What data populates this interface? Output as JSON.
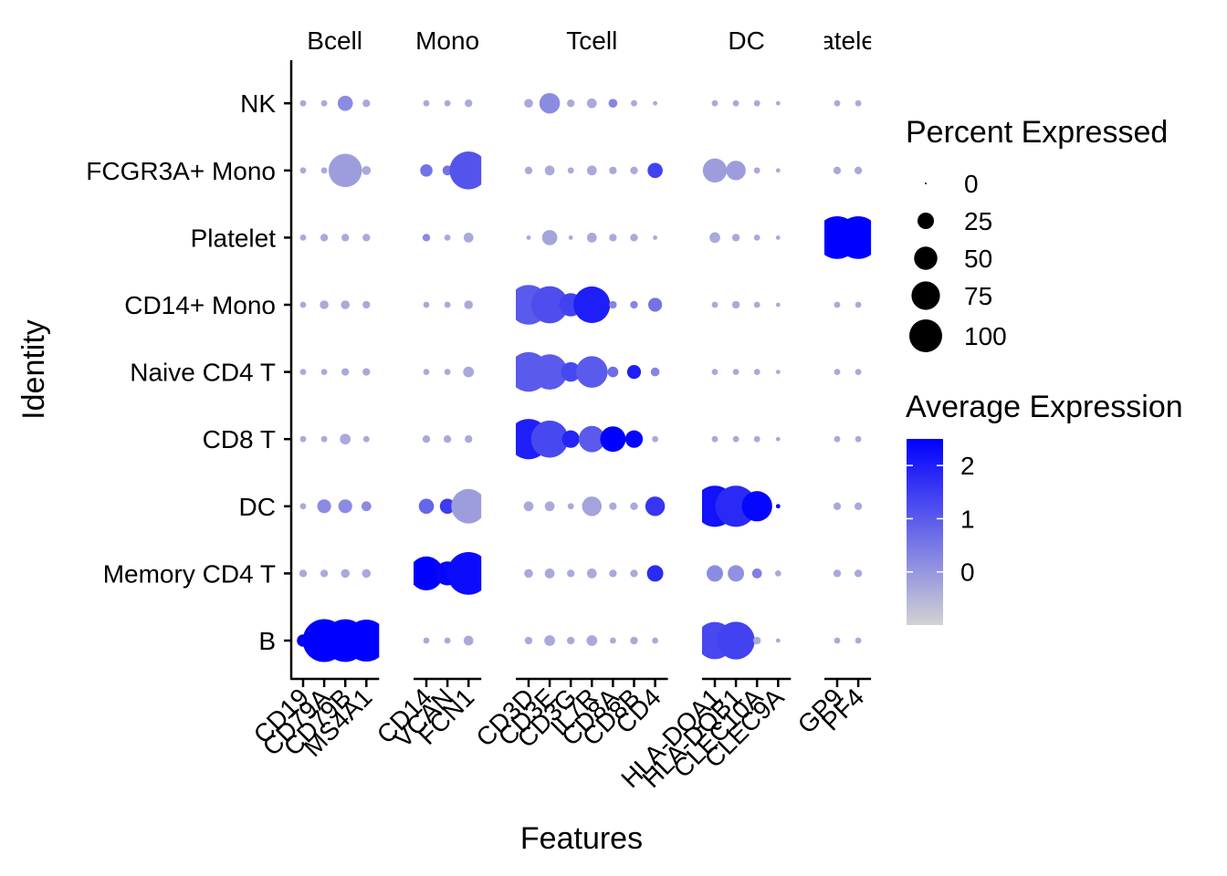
{
  "chart_data": {
    "type": "dotplot",
    "xlabel": "Features",
    "ylabel": "Identity",
    "identities": [
      "B",
      "Memory CD4 T",
      "DC",
      "CD8 T",
      "Naive CD4 T",
      "CD14+ Mono",
      "Platelet",
      "FCGR3A+ Mono",
      "NK"
    ],
    "groups": [
      {
        "label": "Bcell",
        "features": [
          "CD19",
          "CD79A",
          "CD79B",
          "MS4A1"
        ]
      },
      {
        "label": "Mono",
        "features": [
          "CD14",
          "VCAN",
          "FCN1"
        ]
      },
      {
        "label": "Tcell",
        "features": [
          "CD3D",
          "CD3E",
          "CD3G",
          "IL7R",
          "CD8A",
          "CD8B",
          "CD4"
        ]
      },
      {
        "label": "DC",
        "features": [
          "HLA-DQA1",
          "HLA-DQB1",
          "CLEC10A",
          "CLEC9A"
        ]
      },
      {
        "label": "atele",
        "features": [
          "GP9",
          "PF4"
        ]
      }
    ],
    "features": [
      "CD19",
      "CD79A",
      "CD79B",
      "MS4A1",
      "CD14",
      "VCAN",
      "FCN1",
      "CD3D",
      "CD3E",
      "CD3G",
      "IL7R",
      "CD8A",
      "CD8B",
      "CD4",
      "HLA-DQA1",
      "HLA-DQB1",
      "CLEC10A",
      "CLEC9A",
      "GP9",
      "PF4"
    ],
    "percent_expressed": [
      [
        8,
        96,
        95,
        92,
        2,
        2,
        5,
        3,
        6,
        3,
        6,
        2,
        3,
        2,
        72,
        74,
        3,
        1,
        2,
        2
      ],
      [
        3,
        3,
        4,
        4,
        60,
        30,
        95,
        4,
        5,
        3,
        5,
        3,
        3,
        14,
        14,
        14,
        5,
        2,
        3,
        3
      ],
      [
        2,
        10,
        10,
        5,
        12,
        12,
        62,
        5,
        5,
        2,
        20,
        3,
        3,
        20,
        88,
        88,
        48,
        1,
        3,
        3
      ],
      [
        2,
        2,
        6,
        2,
        3,
        3,
        3,
        85,
        72,
        16,
        36,
        34,
        16,
        2,
        2,
        2,
        2,
        1,
        2,
        2
      ],
      [
        2,
        2,
        3,
        3,
        2,
        2,
        6,
        82,
        65,
        20,
        52,
        6,
        10,
        4,
        2,
        2,
        2,
        1,
        2,
        2
      ],
      [
        2,
        4,
        4,
        3,
        2,
        2,
        4,
        82,
        72,
        28,
        70,
        3,
        3,
        10,
        2,
        3,
        2,
        1,
        2,
        2
      ],
      [
        2,
        3,
        3,
        3,
        3,
        2,
        5,
        1,
        12,
        1,
        5,
        3,
        3,
        1,
        6,
        3,
        2,
        1,
        95,
        95
      ],
      [
        2,
        2,
        58,
        4,
        8,
        5,
        75,
        3,
        5,
        2,
        5,
        3,
        3,
        12,
        30,
        20,
        2,
        1,
        3,
        3
      ],
      [
        2,
        2,
        12,
        3,
        2,
        2,
        3,
        4,
        22,
        3,
        5,
        4,
        2,
        1,
        2,
        2,
        2,
        1,
        2,
        2
      ]
    ],
    "average_expression": [
      [
        2.5,
        2.5,
        2.5,
        2.5,
        -0.3,
        -0.3,
        -0.3,
        -0.3,
        -0.3,
        -0.3,
        -0.3,
        -0.3,
        -0.3,
        -0.3,
        1.3,
        1.4,
        -0.3,
        -0.3,
        -0.3,
        -0.3
      ],
      [
        -0.3,
        -0.3,
        -0.3,
        -0.3,
        2.5,
        2.4,
        2.3,
        -0.3,
        -0.3,
        -0.3,
        -0.3,
        -0.3,
        -0.3,
        1.8,
        0.2,
        0.1,
        0.4,
        -0.3,
        -0.3,
        -0.3
      ],
      [
        -0.3,
        0.2,
        0.2,
        0.2,
        0.8,
        1.5,
        -0.1,
        -0.3,
        -0.3,
        -0.3,
        -0.2,
        -0.3,
        -0.3,
        1.6,
        2.2,
        1.8,
        2.4,
        2.5,
        -0.3,
        -0.3
      ],
      [
        -0.3,
        -0.3,
        -0.3,
        -0.3,
        -0.3,
        -0.3,
        -0.3,
        2.0,
        1.3,
        1.9,
        1.0,
        2.5,
        2.4,
        -0.3,
        -0.3,
        -0.3,
        -0.3,
        -0.3,
        -0.3,
        -0.3
      ],
      [
        -0.3,
        -0.3,
        -0.3,
        -0.3,
        -0.3,
        -0.3,
        -0.3,
        1.0,
        1.0,
        1.3,
        1.0,
        0.7,
        2.0,
        0.3,
        -0.3,
        -0.3,
        -0.3,
        -0.3,
        -0.3,
        -0.3
      ],
      [
        -0.3,
        -0.3,
        -0.3,
        -0.3,
        -0.3,
        -0.3,
        -0.3,
        1.0,
        1.2,
        1.4,
        2.0,
        0.3,
        0.3,
        0.6,
        -0.3,
        -0.3,
        -0.3,
        -0.3,
        -0.3,
        -0.3
      ],
      [
        -0.3,
        -0.3,
        -0.3,
        -0.3,
        0.2,
        -0.3,
        -0.3,
        -0.3,
        -0.2,
        -0.3,
        -0.3,
        -0.3,
        -0.3,
        -0.3,
        -0.3,
        -0.3,
        -0.3,
        -0.3,
        2.5,
        2.5
      ],
      [
        -0.3,
        -0.3,
        -0.1,
        -0.3,
        0.6,
        0.6,
        1.1,
        -0.3,
        -0.3,
        -0.3,
        -0.3,
        -0.3,
        -0.3,
        1.4,
        -0.1,
        -0.1,
        -0.3,
        -0.3,
        -0.3,
        -0.3
      ],
      [
        -0.3,
        -0.3,
        0.2,
        -0.3,
        -0.3,
        -0.3,
        -0.3,
        -0.3,
        0.2,
        -0.3,
        -0.3,
        0.3,
        -0.3,
        -0.3,
        -0.3,
        -0.3,
        -0.3,
        -0.3,
        -0.3,
        -0.3
      ]
    ],
    "legend_size": {
      "title": "Percent Expressed",
      "values": [
        0,
        25,
        50,
        75,
        100
      ]
    },
    "legend_color": {
      "title": "Average Expression",
      "min": -1,
      "max": 2.5,
      "ticks": [
        0,
        1,
        2
      ],
      "low_color": "#d3d3d3",
      "high_color": "#0000ff"
    },
    "grid": false,
    "legend_position": "right"
  }
}
